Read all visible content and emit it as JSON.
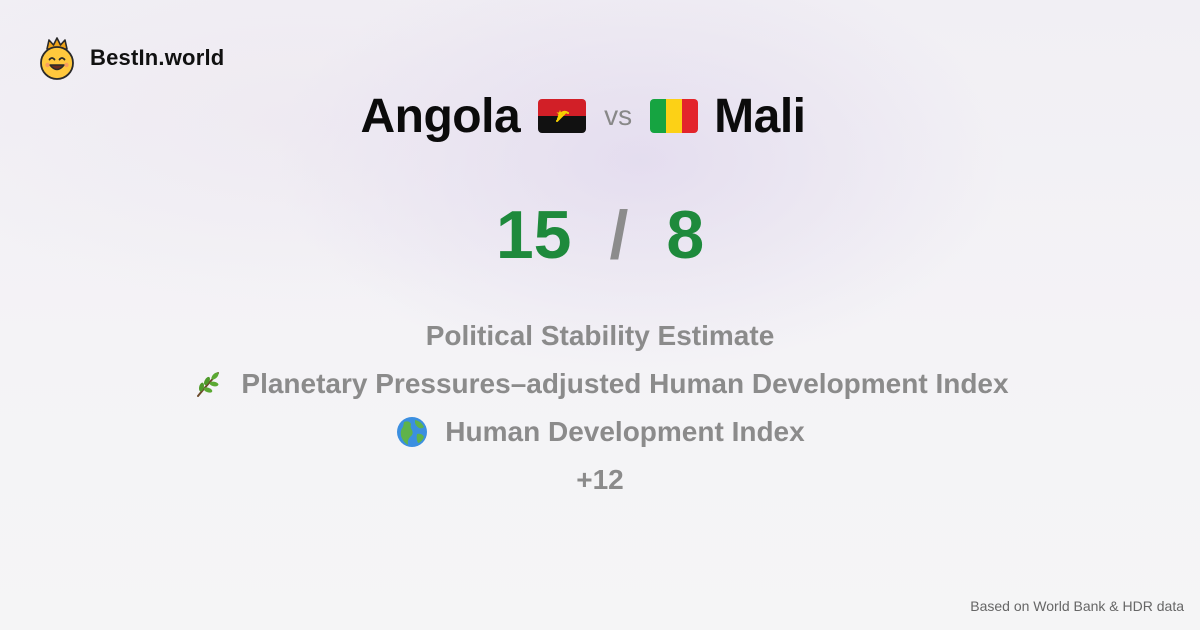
{
  "brand": {
    "name": "BestIn.world",
    "logo_icon": "crowned-smiley-icon"
  },
  "matchup": {
    "left_country": "Angola",
    "left_flag_icon": "angola-flag-icon",
    "vs_label": "vs",
    "right_country": "Mali",
    "right_flag_icon": "mali-flag-icon"
  },
  "score": {
    "left": "15",
    "separator": "/",
    "right": "8",
    "color": "#1e8a3c"
  },
  "metrics": [
    {
      "label": "Political Stability Estimate",
      "icon": ""
    },
    {
      "label": "Planetary Pressures–adjusted Human Development Index",
      "icon": "herb-icon"
    },
    {
      "label": "Human Development Index",
      "icon": "globe-icon"
    }
  ],
  "more_label": "+12",
  "footer": {
    "source": "Based on World Bank & HDR data"
  }
}
